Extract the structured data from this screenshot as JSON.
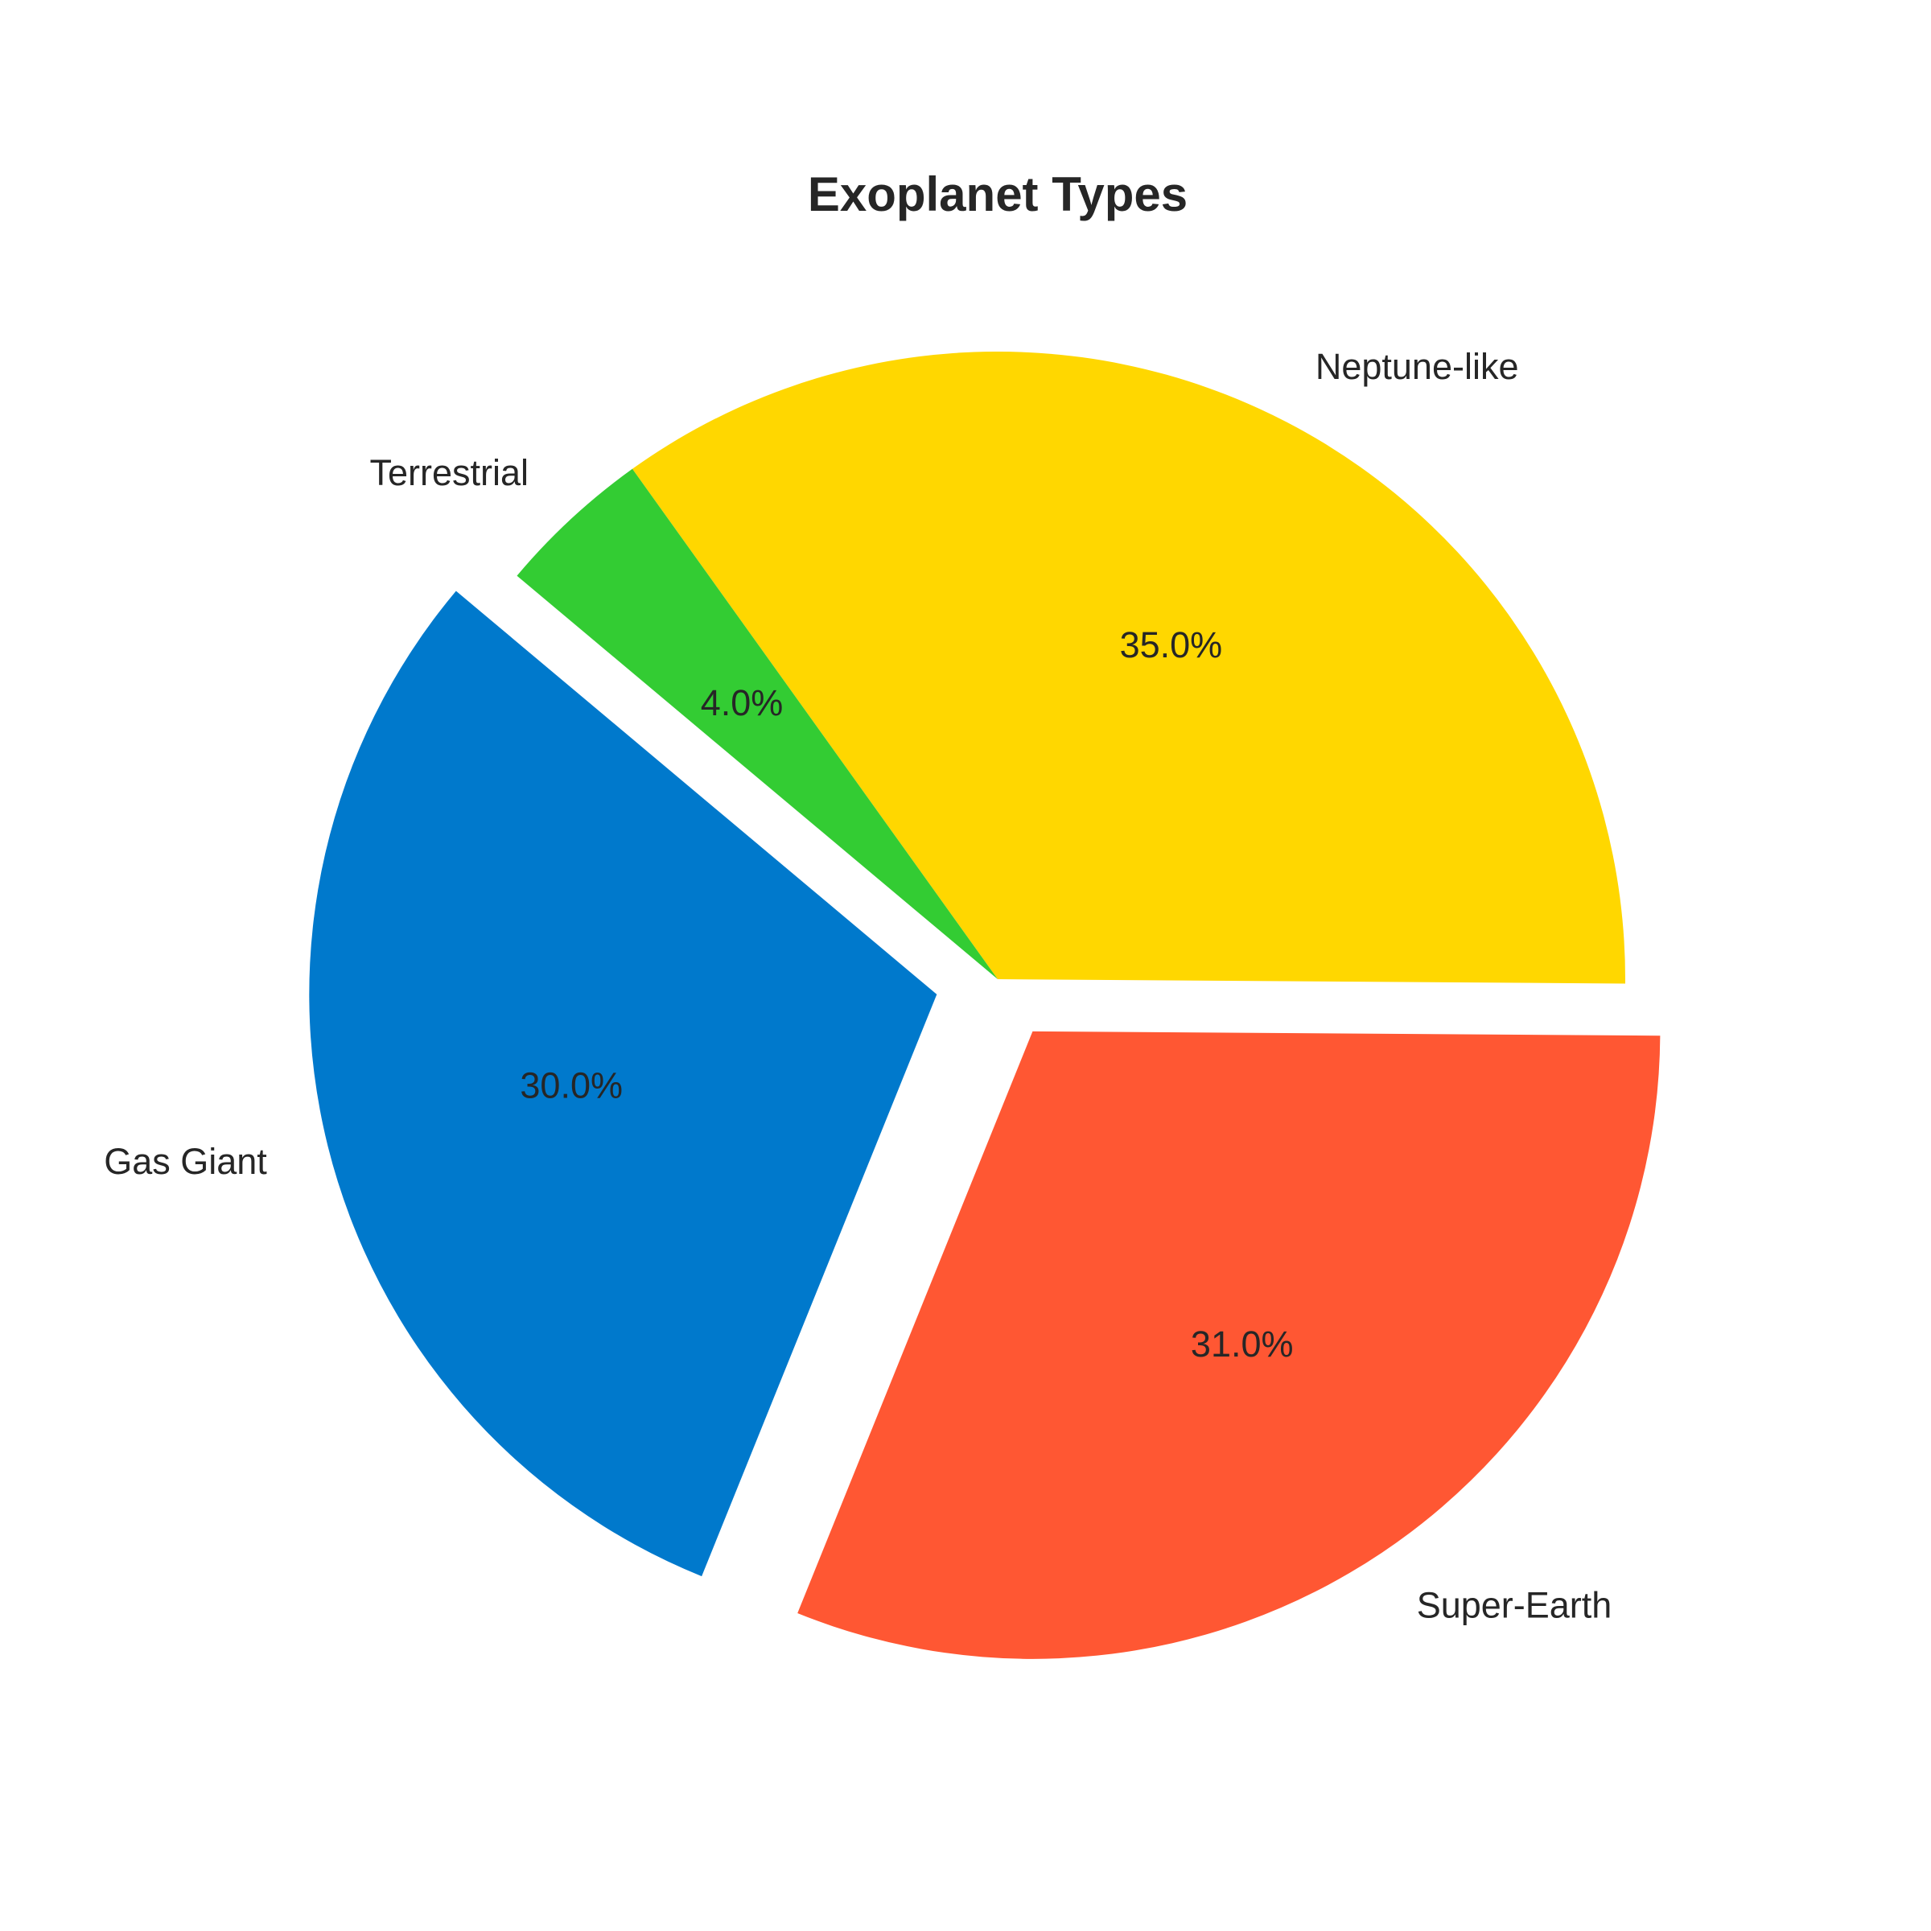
{
  "chart_data": {
    "type": "pie",
    "title": "Exoplanet Types",
    "start_angle_deg": 140,
    "direction": "counterclockwise",
    "slices": [
      {
        "label": "Gas Giant",
        "value": 30.0,
        "pct_text": "30.0%",
        "color": "#0079CC",
        "exploded": true
      },
      {
        "label": "Super-Earth",
        "value": 31.0,
        "pct_text": "31.0%",
        "color": "#FF5733",
        "exploded": true
      },
      {
        "label": "Neptune-like",
        "value": 35.0,
        "pct_text": "35.0%",
        "color": "#FFD700",
        "exploded": false
      },
      {
        "label": "Terrestrial",
        "value": 4.0,
        "pct_text": "4.0%",
        "color": "#33CC33",
        "exploded": false
      }
    ]
  }
}
